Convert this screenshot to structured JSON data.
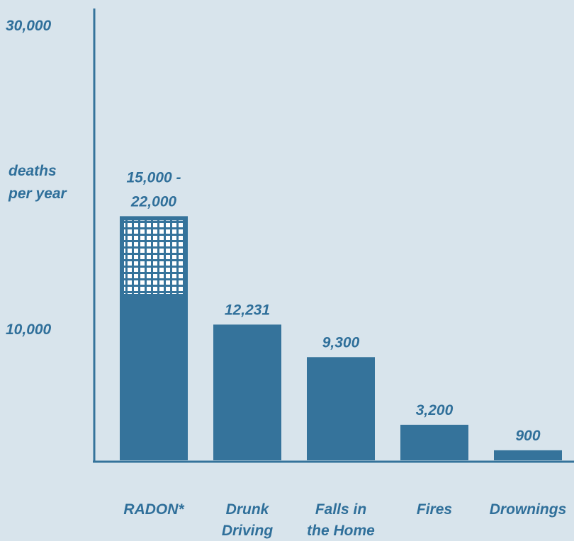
{
  "chart_data": {
    "type": "bar",
    "categories": [
      [
        "RADON*"
      ],
      [
        "Drunk",
        "Driving"
      ],
      [
        "Falls in",
        "the Home"
      ],
      [
        "Fires"
      ],
      [
        "Drownings"
      ]
    ],
    "values": [
      15000,
      12231,
      9300,
      3200,
      900
    ],
    "range_upper": [
      22000,
      null,
      null,
      null,
      null
    ],
    "value_labels": [
      [
        "15,000 -",
        "22,000"
      ],
      [
        "12,231"
      ],
      [
        "9,300"
      ],
      [
        "3,200"
      ],
      [
        "900"
      ]
    ],
    "yticks": [
      "30,000",
      "10,000"
    ],
    "ylabel": [
      "deaths",
      "per year"
    ],
    "ylim": [
      0,
      30000
    ],
    "bar_color": "#35739b",
    "range_pattern": "white grid over bar color",
    "text_color": "#2f6f9a",
    "grid": false,
    "legend": "none"
  }
}
